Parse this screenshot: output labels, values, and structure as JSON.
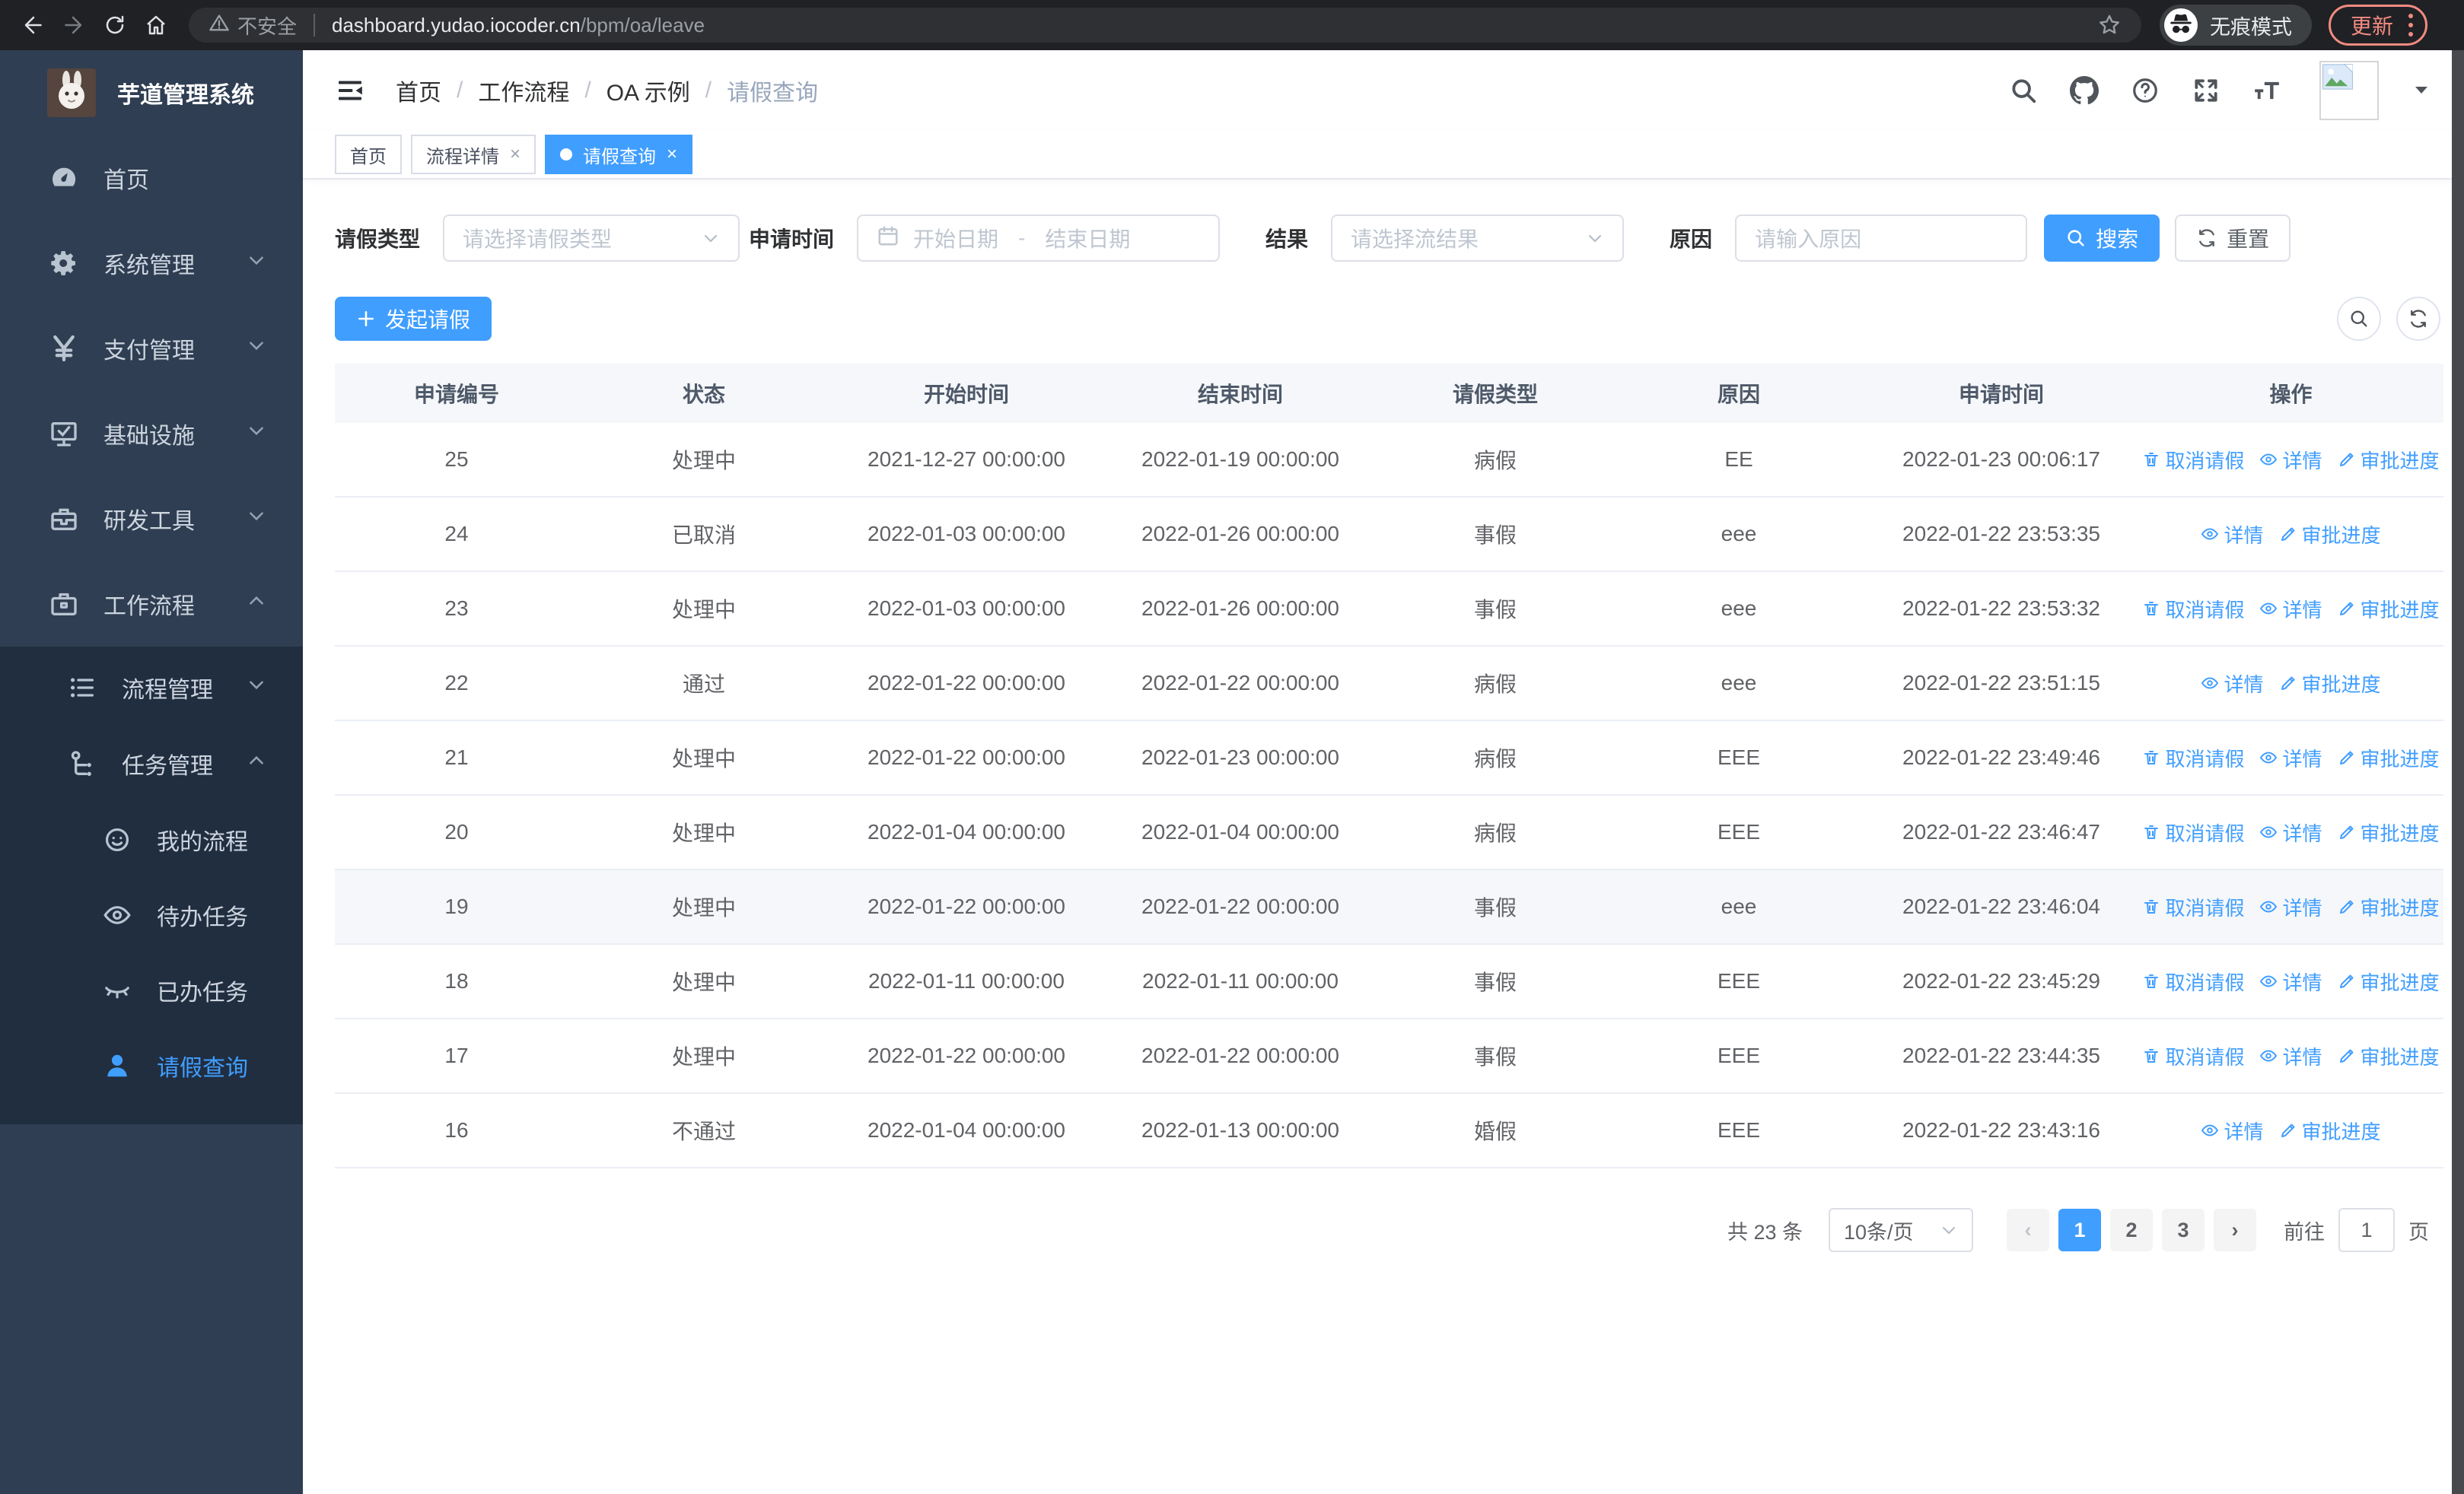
{
  "browser": {
    "security_label": "不安全",
    "url_host": "dashboard.yudao.iocoder.cn",
    "url_path": "/bpm/oa/leave",
    "incognito_label": "无痕模式",
    "update_label": "更新"
  },
  "sidebar": {
    "app_title": "芋道管理系统",
    "menu": [
      {
        "label": "首页",
        "icon": "dashboard-icon"
      },
      {
        "label": "系统管理",
        "icon": "gear-icon"
      },
      {
        "label": "支付管理",
        "icon": "yen-icon"
      },
      {
        "label": "基础设施",
        "icon": "monitor-icon"
      },
      {
        "label": "研发工具",
        "icon": "toolbox-icon"
      },
      {
        "label": "工作流程",
        "icon": "briefcase-icon"
      }
    ],
    "workflow_groups": [
      {
        "label": "流程管理",
        "icon": "flow-list-icon"
      },
      {
        "label": "任务管理",
        "icon": "org-icon"
      }
    ],
    "task_items": [
      {
        "label": "我的流程",
        "icon": "face-icon"
      },
      {
        "label": "待办任务",
        "icon": "eye-icon"
      },
      {
        "label": "已办任务",
        "icon": "eye-closed-icon"
      },
      {
        "label": "请假查询",
        "icon": "user-icon",
        "active": true
      }
    ]
  },
  "header": {
    "breadcrumb": [
      "首页",
      "工作流程",
      "OA 示例",
      "请假查询"
    ]
  },
  "tabs": [
    {
      "label": "首页"
    },
    {
      "label": "流程详情"
    },
    {
      "label": "请假查询"
    }
  ],
  "filters": {
    "type_label": "请假类型",
    "type_placeholder": "请选择请假类型",
    "time_label": "申请时间",
    "start_placeholder": "开始日期",
    "range_separator": "-",
    "end_placeholder": "结束日期",
    "result_label": "结果",
    "result_placeholder": "请选择流结果",
    "reason_label": "原因",
    "reason_placeholder": "请输入原因",
    "search_label": "搜索",
    "reset_label": "重置"
  },
  "toolbar": {
    "create_label": "发起请假"
  },
  "table": {
    "columns": [
      "申请编号",
      "状态",
      "开始时间",
      "结束时间",
      "请假类型",
      "原因",
      "申请时间",
      "操作"
    ],
    "action_defs": {
      "cancel": {
        "label": "取消请假",
        "icon": "trash-icon"
      },
      "detail": {
        "label": "详情",
        "icon": "view-icon"
      },
      "progress": {
        "label": "审批进度",
        "icon": "edit-icon"
      }
    },
    "rows": [
      {
        "id": "25",
        "status": "处理中",
        "start": "2021-12-27 00:00:00",
        "end": "2022-01-19 00:00:00",
        "type": "病假",
        "reason": "EE",
        "apply_time": "2022-01-23 00:06:17",
        "actions": [
          "cancel",
          "detail",
          "progress"
        ],
        "highlight": false
      },
      {
        "id": "24",
        "status": "已取消",
        "start": "2022-01-03 00:00:00",
        "end": "2022-01-26 00:00:00",
        "type": "事假",
        "reason": "eee",
        "apply_time": "2022-01-22 23:53:35",
        "actions": [
          "detail",
          "progress"
        ],
        "highlight": false
      },
      {
        "id": "23",
        "status": "处理中",
        "start": "2022-01-03 00:00:00",
        "end": "2022-01-26 00:00:00",
        "type": "事假",
        "reason": "eee",
        "apply_time": "2022-01-22 23:53:32",
        "actions": [
          "cancel",
          "detail",
          "progress"
        ],
        "highlight": false
      },
      {
        "id": "22",
        "status": "通过",
        "start": "2022-01-22 00:00:00",
        "end": "2022-01-22 00:00:00",
        "type": "病假",
        "reason": "eee",
        "apply_time": "2022-01-22 23:51:15",
        "actions": [
          "detail",
          "progress"
        ],
        "highlight": false
      },
      {
        "id": "21",
        "status": "处理中",
        "start": "2022-01-22 00:00:00",
        "end": "2022-01-23 00:00:00",
        "type": "病假",
        "reason": "EEE",
        "apply_time": "2022-01-22 23:49:46",
        "actions": [
          "cancel",
          "detail",
          "progress"
        ],
        "highlight": false
      },
      {
        "id": "20",
        "status": "处理中",
        "start": "2022-01-04 00:00:00",
        "end": "2022-01-04 00:00:00",
        "type": "病假",
        "reason": "EEE",
        "apply_time": "2022-01-22 23:46:47",
        "actions": [
          "cancel",
          "detail",
          "progress"
        ],
        "highlight": false
      },
      {
        "id": "19",
        "status": "处理中",
        "start": "2022-01-22 00:00:00",
        "end": "2022-01-22 00:00:00",
        "type": "事假",
        "reason": "eee",
        "apply_time": "2022-01-22 23:46:04",
        "actions": [
          "cancel",
          "detail",
          "progress"
        ],
        "highlight": true
      },
      {
        "id": "18",
        "status": "处理中",
        "start": "2022-01-11 00:00:00",
        "end": "2022-01-11 00:00:00",
        "type": "事假",
        "reason": "EEE",
        "apply_time": "2022-01-22 23:45:29",
        "actions": [
          "cancel",
          "detail",
          "progress"
        ],
        "highlight": false
      },
      {
        "id": "17",
        "status": "处理中",
        "start": "2022-01-22 00:00:00",
        "end": "2022-01-22 00:00:00",
        "type": "事假",
        "reason": "EEE",
        "apply_time": "2022-01-22 23:44:35",
        "actions": [
          "cancel",
          "detail",
          "progress"
        ],
        "highlight": false
      },
      {
        "id": "16",
        "status": "不通过",
        "start": "2022-01-04 00:00:00",
        "end": "2022-01-13 00:00:00",
        "type": "婚假",
        "reason": "EEE",
        "apply_time": "2022-01-22 23:43:16",
        "actions": [
          "detail",
          "progress"
        ],
        "highlight": false
      }
    ]
  },
  "pagination": {
    "total_label": "共 23 条",
    "page_size": "10条/页",
    "pages": [
      "1",
      "2",
      "3"
    ],
    "active_page": "1",
    "jump_prefix": "前往",
    "jump_value": "1",
    "jump_suffix": "页"
  },
  "colors": {
    "accent": "#409eff",
    "sidebar_bg": "#2f3e52",
    "submenu_bg": "#212e40",
    "update_pill": "#f28b82"
  }
}
